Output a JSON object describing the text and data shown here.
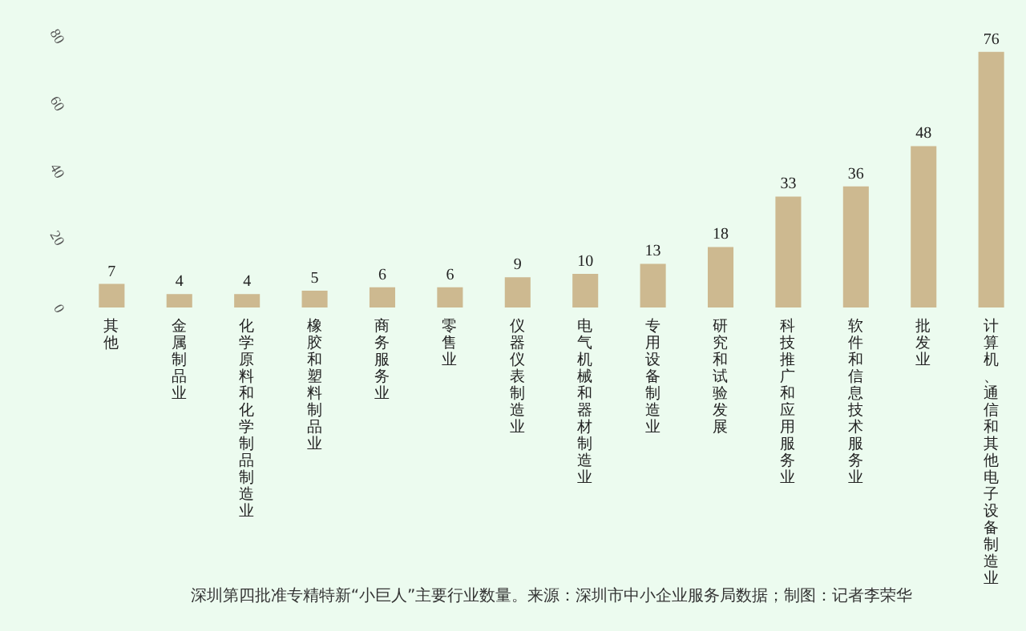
{
  "chart_data": {
    "type": "bar",
    "categories": [
      "其他",
      "金属制品业",
      "化学原料和化学制品制造业",
      "橡胶和塑料制品业",
      "商务服务业",
      "零售业",
      "仪器仪表制造业",
      "电气机械和器材制造业",
      "专用设备制造业",
      "研究和试验发展",
      "科技推广和应用服务业",
      "软件和信息技术服务业",
      "批发业",
      "计算机、通信和其他电子设备制造业"
    ],
    "values": [
      7,
      4,
      4,
      5,
      6,
      6,
      9,
      10,
      13,
      18,
      33,
      36,
      48,
      76
    ],
    "color": "#cdb990",
    "ylim": [
      0,
      80
    ],
    "yticks": [
      0,
      20,
      40,
      60,
      80
    ],
    "data_labels": true,
    "grid": false,
    "annotations": [
      "深圳第四批准专精特新“小巨人”主要行业数量。来源：深圳市中小企业服务局数据；制图：记者李荣华"
    ]
  }
}
